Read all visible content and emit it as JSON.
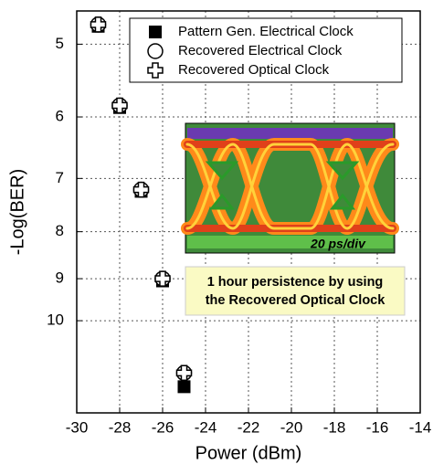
{
  "chart_data": {
    "type": "scatter",
    "x_label": "Power (dBm)",
    "y_label": "-Log(BER)",
    "xlim": [
      -30,
      -14
    ],
    "xticks": [
      -30,
      -28,
      -26,
      -24,
      -22,
      -20,
      -18,
      -16,
      -14
    ],
    "ylim": [
      4.6,
      12.6
    ],
    "yticks": [
      5,
      6,
      7,
      8,
      9,
      10
    ],
    "y_scale": "log",
    "y_inverted": true,
    "grid": true,
    "legend": "top-right",
    "series": [
      {
        "name": "Pattern Gen. Electrical Clock",
        "marker": "square",
        "color": "#000000",
        "x": [
          -29,
          -28,
          -27,
          -26,
          -25
        ],
        "values": [
          4.78,
          5.86,
          7.23,
          9.05,
          11.8
        ]
      },
      {
        "name": "Recovered Electrical Clock",
        "marker": "circle",
        "color": "#000000",
        "x": [
          -29,
          -28,
          -27,
          -26,
          -25
        ],
        "values": [
          4.76,
          5.83,
          7.2,
          9.0,
          11.4
        ]
      },
      {
        "name": "Recovered Optical Clock",
        "marker": "cross",
        "color": "#000000",
        "x": [
          -29,
          -28,
          -27,
          -26,
          -25
        ],
        "values": [
          4.76,
          5.83,
          7.2,
          9.0,
          11.4
        ]
      }
    ],
    "inset_label": "20 ps/div",
    "annotation": [
      "1 hour persistence by using",
      "the Recovered Optical Clock"
    ]
  }
}
